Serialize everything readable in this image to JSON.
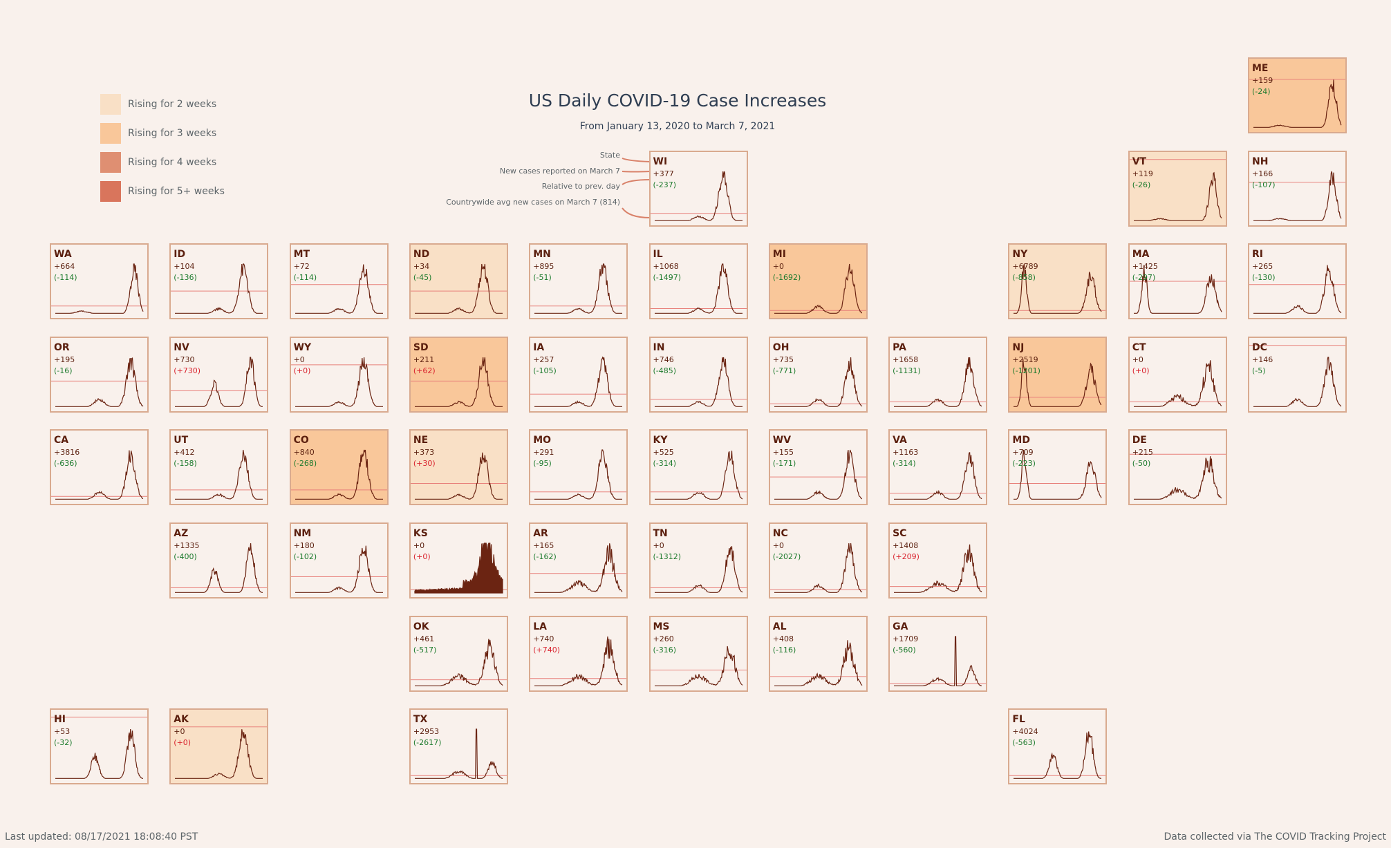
{
  "title": "US Daily COVID-19 Case Increases",
  "subtitle": "From January 13, 2020 to March 7, 2021",
  "legend": {
    "items": [
      {
        "label": "Rising for 2 weeks",
        "color": "#f9e0c6"
      },
      {
        "label": "Rising for 3 weeks",
        "color": "#f9c79a"
      },
      {
        "label": "Rising for 4 weeks",
        "color": "#df8f72"
      },
      {
        "label": "Rising for 5+ weeks",
        "color": "#d9755c"
      }
    ]
  },
  "callouts": {
    "state": "State",
    "new_cases": "New cases reported on March 7",
    "relative": "Relative to prev. day",
    "avg": "Countrywide avg new cases on March 7 (814)"
  },
  "colors": {
    "background": "#f9f1ec",
    "tile_border": "#d9aa8f",
    "line": "#6b2412",
    "avg_line": "#e8807a",
    "decrease": "#1c7a2c",
    "increase": "#d9232e"
  },
  "footer": {
    "left": "Last updated: 08/17/2021 18:08:40 PST",
    "right": "Data collected via The COVID Tracking Project"
  },
  "chart_data": {
    "type": "line",
    "title": "US Daily COVID-19 Case Increases",
    "subtitle": "From January 13, 2020 to March 7, 2021",
    "countrywide_avg_new_cases": 814,
    "states": [
      {
        "state": "ME",
        "new_cases": "+159",
        "change": "(-24)",
        "rising": 3,
        "avg_level": 0.75,
        "shape": "late",
        "row": 0,
        "col": 10
      },
      {
        "state": "WI",
        "new_cases": "+377",
        "change": "(-237)",
        "rising": 0,
        "avg_level": 0.12,
        "shape": "fall",
        "row": 1,
        "col": 5
      },
      {
        "state": "VT",
        "new_cases": "+119",
        "change": "(-26)",
        "rising": 2,
        "avg_level": 0.95,
        "shape": "late",
        "row": 1,
        "col": 9
      },
      {
        "state": "NH",
        "new_cases": "+166",
        "change": "(-107)",
        "rising": 0,
        "avg_level": 0.6,
        "shape": "late",
        "row": 1,
        "col": 10
      },
      {
        "state": "WA",
        "new_cases": "+664",
        "change": "(-114)",
        "rising": 0,
        "avg_level": 0.12,
        "shape": "late",
        "row": 2,
        "col": 0
      },
      {
        "state": "ID",
        "new_cases": "+104",
        "change": "(-136)",
        "rising": 0,
        "avg_level": 0.35,
        "shape": "fall",
        "row": 2,
        "col": 1
      },
      {
        "state": "MT",
        "new_cases": "+72",
        "change": "(-114)",
        "rising": 0,
        "avg_level": 0.45,
        "shape": "fall",
        "row": 2,
        "col": 2
      },
      {
        "state": "ND",
        "new_cases": "+34",
        "change": "(-45)",
        "rising": 2,
        "avg_level": 0.35,
        "shape": "fall",
        "row": 2,
        "col": 3
      },
      {
        "state": "MN",
        "new_cases": "+895",
        "change": "(-51)",
        "rising": 0,
        "avg_level": 0.12,
        "shape": "fall",
        "row": 2,
        "col": 4
      },
      {
        "state": "IL",
        "new_cases": "+1068",
        "change": "(-1497)",
        "rising": 0,
        "avg_level": 0.08,
        "shape": "fall",
        "row": 2,
        "col": 5
      },
      {
        "state": "MI",
        "new_cases": "+0",
        "change": "(-1692)",
        "rising": 3,
        "avg_level": 0.05,
        "shape": "winter",
        "row": 2,
        "col": 6
      },
      {
        "state": "NY",
        "new_cases": "+6789",
        "change": "(-858)",
        "rising": 2,
        "avg_level": 0.05,
        "shape": "spring",
        "row": 2,
        "col": 8
      },
      {
        "state": "MA",
        "new_cases": "+1425",
        "change": "(-297)",
        "rising": 0,
        "avg_level": 0.5,
        "shape": "spring",
        "row": 2,
        "col": 9
      },
      {
        "state": "RI",
        "new_cases": "+265",
        "change": "(-130)",
        "rising": 0,
        "avg_level": 0.45,
        "shape": "winter",
        "row": 2,
        "col": 10
      },
      {
        "state": "OR",
        "new_cases": "+195",
        "change": "(-16)",
        "rising": 0,
        "avg_level": 0.4,
        "shape": "winter",
        "row": 3,
        "col": 0
      },
      {
        "state": "NV",
        "new_cases": "+730",
        "change": "(+730)",
        "rising": 0,
        "avg_level": 0.25,
        "shape": "summer",
        "row": 3,
        "col": 1
      },
      {
        "state": "WY",
        "new_cases": "+0",
        "change": "(+0)",
        "rising": 0,
        "avg_level": 0.65,
        "shape": "fall",
        "row": 3,
        "col": 2
      },
      {
        "state": "SD",
        "new_cases": "+211",
        "change": "(+62)",
        "rising": 3,
        "avg_level": 0.4,
        "shape": "fall",
        "row": 3,
        "col": 3
      },
      {
        "state": "IA",
        "new_cases": "+257",
        "change": "(-105)",
        "rising": 0,
        "avg_level": 0.2,
        "shape": "fall",
        "row": 3,
        "col": 4
      },
      {
        "state": "IN",
        "new_cases": "+746",
        "change": "(-485)",
        "rising": 0,
        "avg_level": 0.12,
        "shape": "fall",
        "row": 3,
        "col": 5
      },
      {
        "state": "OH",
        "new_cases": "+735",
        "change": "(-771)",
        "rising": 0,
        "avg_level": 0.05,
        "shape": "winter",
        "row": 3,
        "col": 6
      },
      {
        "state": "PA",
        "new_cases": "+1658",
        "change": "(-1131)",
        "rising": 0,
        "avg_level": 0.08,
        "shape": "winter",
        "row": 3,
        "col": 7
      },
      {
        "state": "NJ",
        "new_cases": "+2519",
        "change": "(-1201)",
        "rising": 3,
        "avg_level": 0.15,
        "shape": "spring",
        "row": 3,
        "col": 8
      },
      {
        "state": "CT",
        "new_cases": "+0",
        "change": "(+0)",
        "rising": 0,
        "avg_level": 0.08,
        "shape": "spiky",
        "row": 3,
        "col": 9
      },
      {
        "state": "DC",
        "new_cases": "+146",
        "change": "(-5)",
        "rising": 0,
        "avg_level": 0.95,
        "shape": "winter",
        "row": 3,
        "col": 10
      },
      {
        "state": "CA",
        "new_cases": "+3816",
        "change": "(-636)",
        "rising": 0,
        "avg_level": 0.05,
        "shape": "winter",
        "row": 4,
        "col": 0
      },
      {
        "state": "UT",
        "new_cases": "+412",
        "change": "(-158)",
        "rising": 0,
        "avg_level": 0.15,
        "shape": "fall",
        "row": 4,
        "col": 1
      },
      {
        "state": "CO",
        "new_cases": "+840",
        "change": "(-268)",
        "rising": 3,
        "avg_level": 0.15,
        "shape": "fall",
        "row": 4,
        "col": 2
      },
      {
        "state": "NE",
        "new_cases": "+373",
        "change": "(+30)",
        "rising": 2,
        "avg_level": 0.25,
        "shape": "fall",
        "row": 4,
        "col": 3
      },
      {
        "state": "MO",
        "new_cases": "+291",
        "change": "(-95)",
        "rising": 0,
        "avg_level": 0.12,
        "shape": "fall",
        "row": 4,
        "col": 4
      },
      {
        "state": "KY",
        "new_cases": "+525",
        "change": "(-314)",
        "rising": 0,
        "avg_level": 0.12,
        "shape": "winter",
        "row": 4,
        "col": 5
      },
      {
        "state": "WV",
        "new_cases": "+155",
        "change": "(-171)",
        "rising": 0,
        "avg_level": 0.35,
        "shape": "winter",
        "row": 4,
        "col": 6
      },
      {
        "state": "VA",
        "new_cases": "+1163",
        "change": "(-314)",
        "rising": 0,
        "avg_level": 0.1,
        "shape": "winter",
        "row": 4,
        "col": 7
      },
      {
        "state": "MD",
        "new_cases": "+709",
        "change": "(-223)",
        "rising": 0,
        "avg_level": 0.25,
        "shape": "spring",
        "row": 4,
        "col": 8
      },
      {
        "state": "DE",
        "new_cases": "+215",
        "change": "(-50)",
        "rising": 0,
        "avg_level": 0.7,
        "shape": "spiky",
        "row": 4,
        "col": 9
      },
      {
        "state": "AZ",
        "new_cases": "+1335",
        "change": "(-400)",
        "rising": 0,
        "avg_level": 0.08,
        "shape": "summer",
        "row": 5,
        "col": 1
      },
      {
        "state": "NM",
        "new_cases": "+180",
        "change": "(-102)",
        "rising": 0,
        "avg_level": 0.25,
        "shape": "fall",
        "row": 5,
        "col": 2
      },
      {
        "state": "KS",
        "new_cases": "+0",
        "change": "(+0)",
        "rising": 0,
        "avg_level": 0.05,
        "shape": "filled",
        "row": 5,
        "col": 3
      },
      {
        "state": "AR",
        "new_cases": "+165",
        "change": "(-162)",
        "rising": 0,
        "avg_level": 0.3,
        "shape": "spiky",
        "row": 5,
        "col": 4
      },
      {
        "state": "TN",
        "new_cases": "+0",
        "change": "(-1312)",
        "rising": 0,
        "avg_level": 0.08,
        "shape": "winter",
        "row": 5,
        "col": 5
      },
      {
        "state": "NC",
        "new_cases": "+0",
        "change": "(-2027)",
        "rising": 0,
        "avg_level": 0.05,
        "shape": "winter",
        "row": 5,
        "col": 6
      },
      {
        "state": "SC",
        "new_cases": "+1408",
        "change": "(+209)",
        "rising": 0,
        "avg_level": 0.1,
        "shape": "spiky",
        "row": 5,
        "col": 7
      },
      {
        "state": "OK",
        "new_cases": "+461",
        "change": "(-517)",
        "rising": 0,
        "avg_level": 0.1,
        "shape": "spiky",
        "row": 6,
        "col": 3
      },
      {
        "state": "LA",
        "new_cases": "+740",
        "change": "(+740)",
        "rising": 0,
        "avg_level": 0.12,
        "shape": "spiky",
        "row": 6,
        "col": 4
      },
      {
        "state": "MS",
        "new_cases": "+260",
        "change": "(-316)",
        "rising": 0,
        "avg_level": 0.25,
        "shape": "spiky",
        "row": 6,
        "col": 5
      },
      {
        "state": "AL",
        "new_cases": "+408",
        "change": "(-116)",
        "rising": 0,
        "avg_level": 0.15,
        "shape": "spiky",
        "row": 6,
        "col": 6
      },
      {
        "state": "GA",
        "new_cases": "+1709",
        "change": "(-560)",
        "rising": 0,
        "avg_level": 0.04,
        "shape": "spike",
        "row": 6,
        "col": 7
      },
      {
        "state": "HI",
        "new_cases": "+53",
        "change": "(-32)",
        "rising": 0,
        "avg_level": 0.95,
        "shape": "summer",
        "row": 7,
        "col": 0
      },
      {
        "state": "AK",
        "new_cases": "+0",
        "change": "(+0)",
        "rising": 2,
        "avg_level": 0.8,
        "shape": "fall",
        "row": 7,
        "col": 1
      },
      {
        "state": "TX",
        "new_cases": "+2953",
        "change": "(-2617)",
        "rising": 0,
        "avg_level": 0.05,
        "shape": "spike",
        "row": 7,
        "col": 3
      },
      {
        "state": "FL",
        "new_cases": "+4024",
        "change": "(-563)",
        "rising": 0,
        "avg_level": 0.05,
        "shape": "summer",
        "row": 7,
        "col": 8
      }
    ]
  }
}
